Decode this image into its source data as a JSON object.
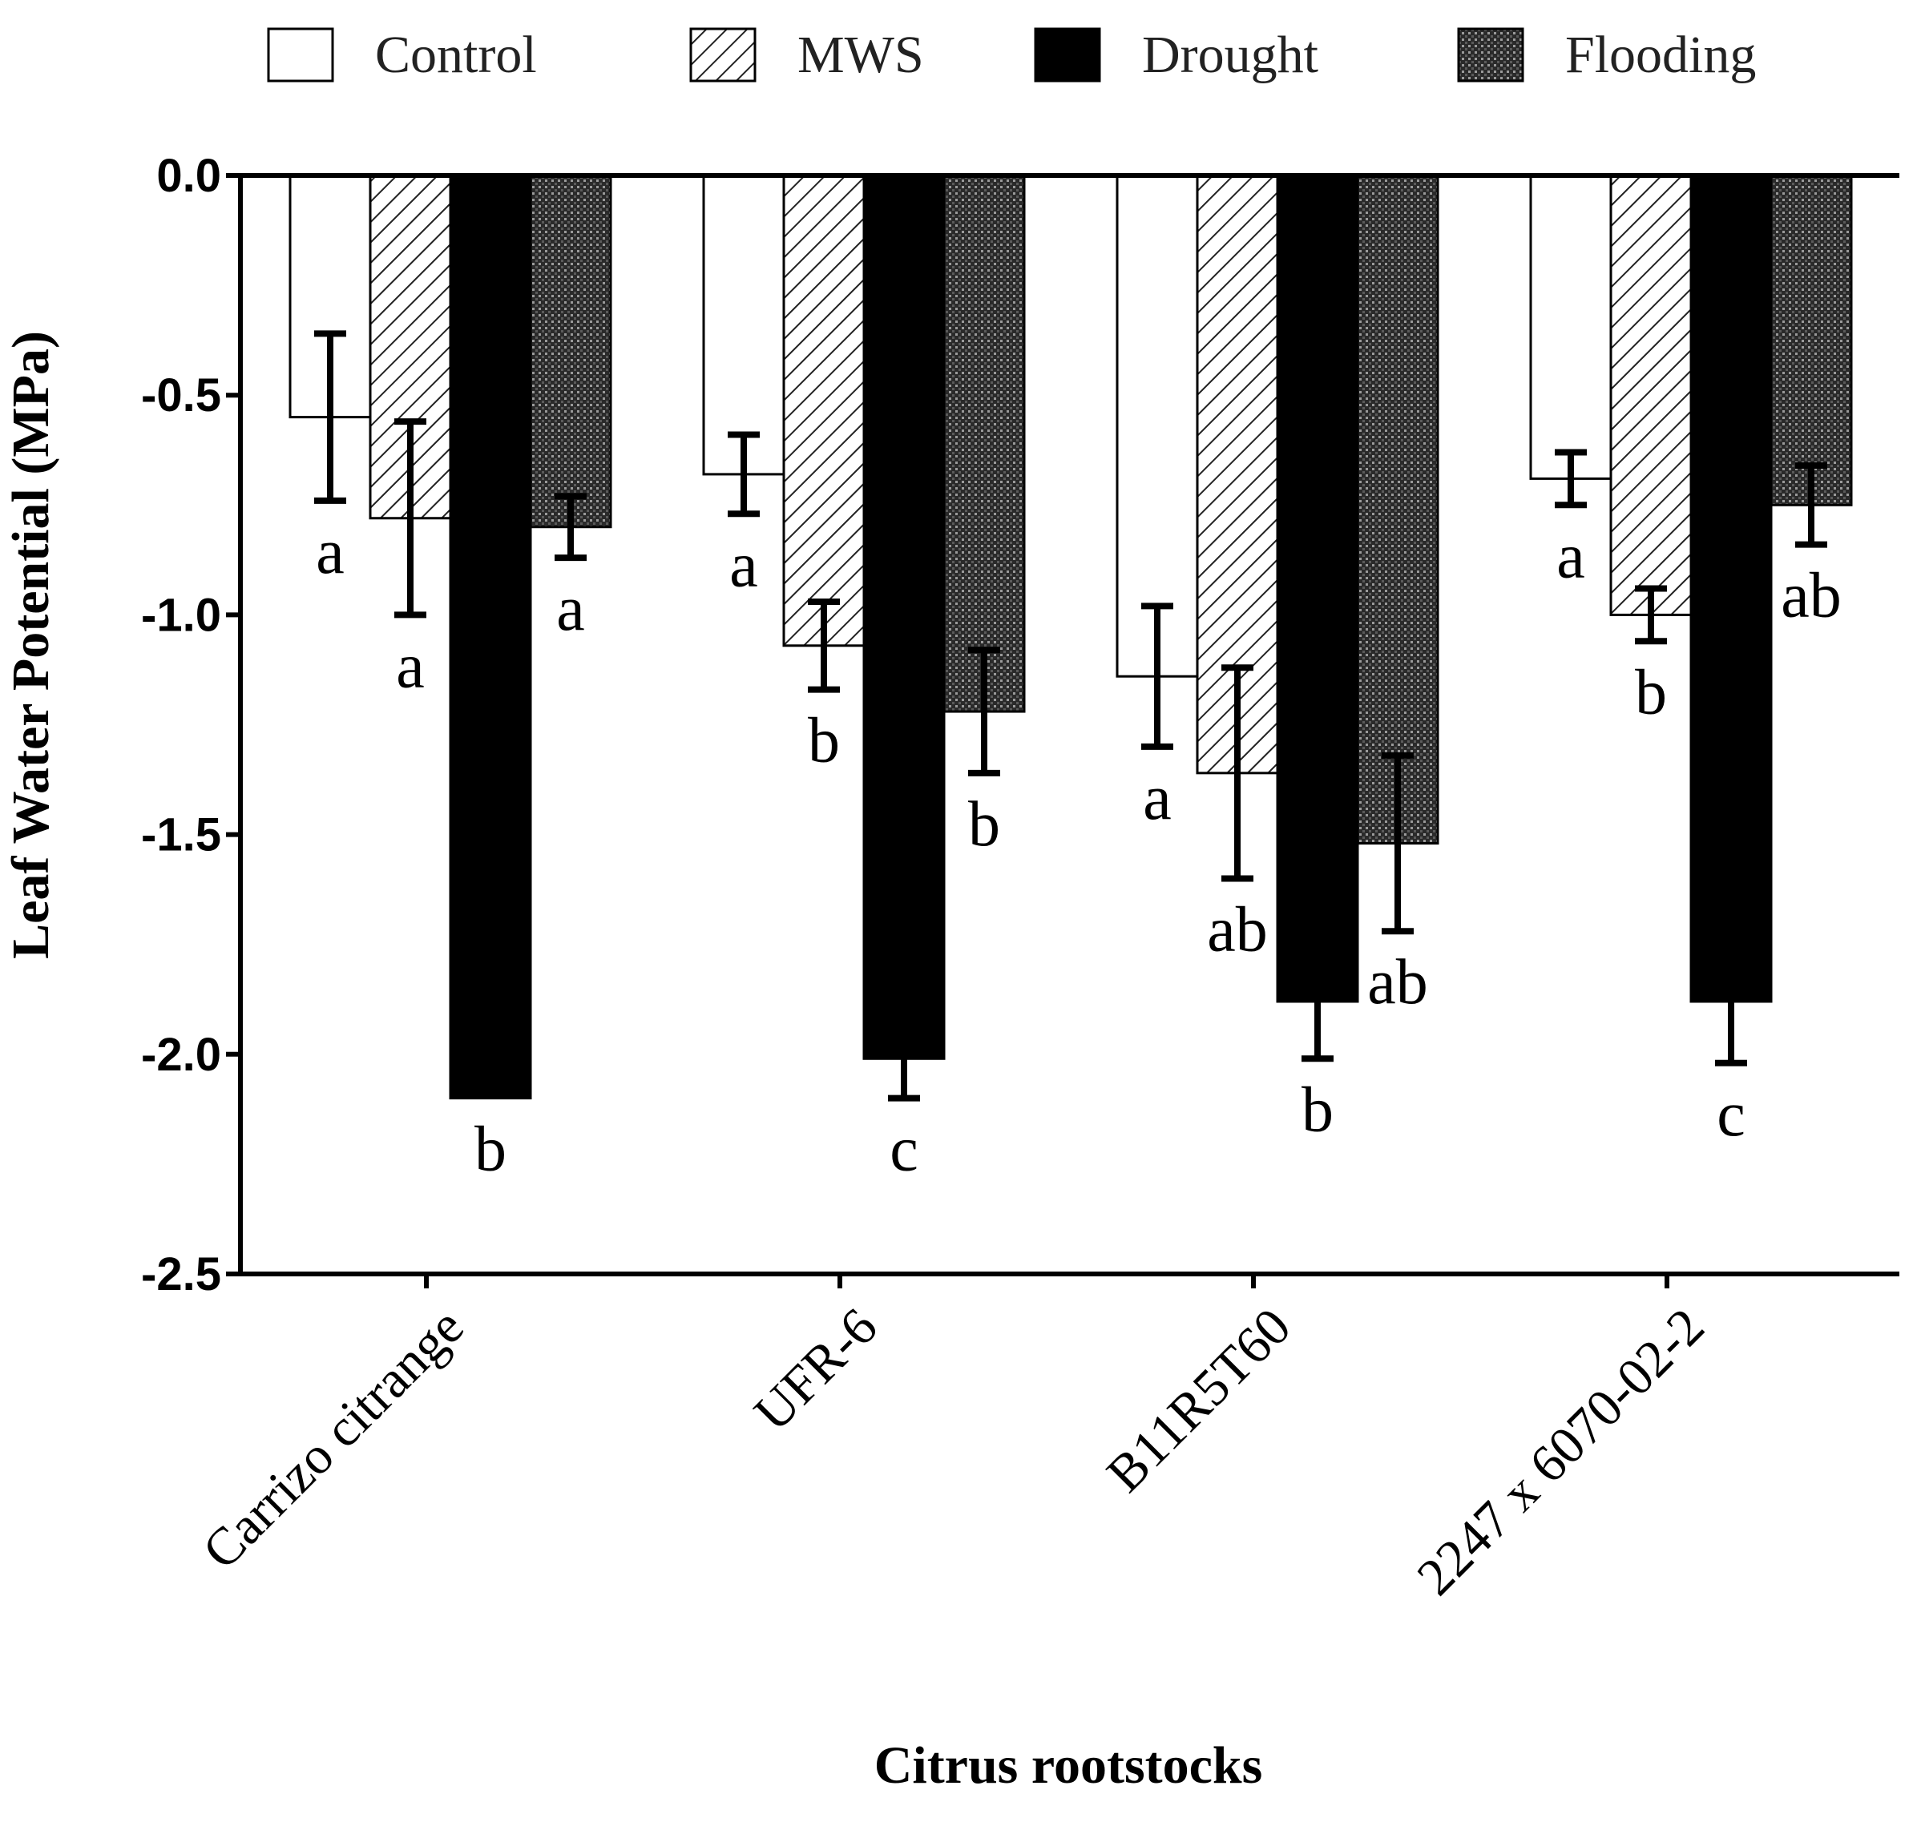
{
  "chart_data": {
    "type": "bar",
    "title": "",
    "xlabel": "Citrus rootstocks",
    "ylabel": "Leaf Water Potential (MPa)",
    "ylim": [
      -2.5,
      0.0
    ],
    "y_ticks": [
      "0.0",
      "-0.5",
      "-1.0",
      "-1.5",
      "-2.0",
      "-2.5"
    ],
    "grid": false,
    "legend_position": "top",
    "categories": [
      "Carrizo citrange",
      "UFR-6",
      "B11R5T60",
      "2247 x 6070-02-2"
    ],
    "series": [
      {
        "name": "Control",
        "pattern": "open",
        "values": [
          -0.55,
          -0.68,
          -1.14,
          -0.69
        ],
        "errors": [
          0.19,
          0.09,
          0.16,
          0.06
        ],
        "letters": [
          "a",
          "a",
          "a",
          "a"
        ]
      },
      {
        "name": "MWS",
        "pattern": "diagonal-hatch",
        "values": [
          -0.78,
          -1.07,
          -1.36,
          -1.0
        ],
        "errors": [
          0.22,
          0.1,
          0.24,
          0.06
        ],
        "letters": [
          "a",
          "b",
          "ab",
          "b"
        ]
      },
      {
        "name": "Drought",
        "pattern": "solid-black",
        "values": [
          -2.1,
          -2.01,
          -1.88,
          -1.88
        ],
        "errors": [
          0.0,
          0.09,
          0.13,
          0.14
        ],
        "letters": [
          "b",
          "c",
          "b",
          "c"
        ]
      },
      {
        "name": "Flooding",
        "pattern": "dense-crosshatch",
        "values": [
          -0.8,
          -1.22,
          -1.52,
          -0.75
        ],
        "errors": [
          0.07,
          0.14,
          0.2,
          0.09
        ],
        "letters": [
          "a",
          "b",
          "ab",
          "ab"
        ]
      }
    ]
  }
}
